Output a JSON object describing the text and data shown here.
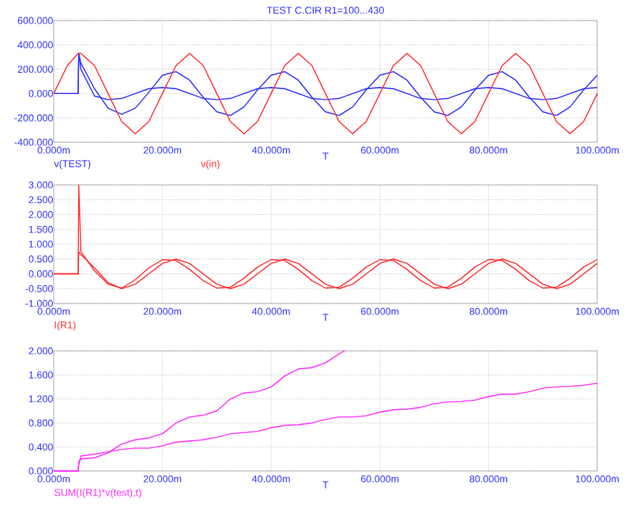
{
  "chart_data": [
    {
      "type": "line",
      "title": "TEST C.CIR R1=100...430",
      "xlabel": "T",
      "grid": true,
      "xlim": [
        0,
        100
      ],
      "ylim": [
        -400,
        600
      ],
      "xticks": [
        {
          "value": 0,
          "label": "0.000m"
        },
        {
          "value": 20,
          "label": "20.000m"
        },
        {
          "value": 40,
          "label": "40.000m"
        },
        {
          "value": 60,
          "label": "60.000m"
        },
        {
          "value": 80,
          "label": "80.000m"
        },
        {
          "value": 100,
          "label": "100.000m"
        }
      ],
      "yticks": [
        {
          "value": -400,
          "label": "-400.000"
        },
        {
          "value": -200,
          "label": "-200.000"
        },
        {
          "value": 0,
          "label": "0.000"
        },
        {
          "value": 200,
          "label": "200.000"
        },
        {
          "value": 400,
          "label": "400.000"
        },
        {
          "value": 600,
          "label": "600.000"
        }
      ],
      "series": [
        {
          "name": "v(TEST)",
          "color": "#3333ff",
          "x": [
            0,
            2.5,
            4.5,
            4.6,
            5,
            7.5,
            10,
            12.5,
            15,
            17.5,
            20,
            22.5,
            25,
            27.5,
            30,
            32.5,
            35,
            37.5,
            40,
            42.5,
            45,
            47.5,
            50,
            52.5,
            55,
            57.5,
            60,
            62.5,
            65,
            67.5,
            70,
            72.5,
            75,
            77.5,
            80,
            82.5,
            85,
            87.5,
            90,
            92.5,
            95,
            97.5,
            100
          ],
          "values": [
            0,
            0,
            0,
            330,
            250,
            40,
            -120,
            -170,
            -120,
            10,
            150,
            180,
            110,
            -30,
            -150,
            -180,
            -110,
            30,
            150,
            180,
            110,
            -30,
            -150,
            -180,
            -110,
            30,
            150,
            180,
            110,
            -30,
            -150,
            -180,
            -110,
            30,
            150,
            180,
            110,
            -30,
            -150,
            -180,
            -110,
            30,
            150
          ]
        },
        {
          "color": "#3333ff",
          "x": [
            0,
            2.5,
            4.5,
            4.6,
            5,
            7.5,
            10,
            12.5,
            15,
            17.5,
            20,
            22.5,
            25,
            27.5,
            30,
            32.5,
            35,
            37.5,
            40,
            42.5,
            45,
            47.5,
            50,
            52.5,
            55,
            57.5,
            60,
            62.5,
            65,
            67.5,
            70,
            72.5,
            75,
            77.5,
            80,
            82.5,
            85,
            87.5,
            90,
            92.5,
            95,
            97.5,
            100
          ],
          "values": [
            0,
            0,
            0,
            330,
            200,
            -20,
            -50,
            -40,
            0,
            40,
            50,
            40,
            0,
            -40,
            -50,
            -40,
            0,
            40,
            50,
            40,
            0,
            -40,
            -50,
            -40,
            0,
            40,
            50,
            40,
            0,
            -40,
            -50,
            -40,
            0,
            40,
            50,
            40,
            0,
            -40,
            -50,
            -40,
            0,
            40,
            50
          ]
        },
        {
          "name": "v(in)",
          "color": "#ff3333",
          "x": [
            0,
            2.5,
            4.5,
            4.6,
            5,
            7.5,
            10,
            12.5,
            15,
            17.5,
            20,
            22.5,
            25,
            27.5,
            30,
            32.5,
            35,
            37.5,
            40,
            42.5,
            45,
            47.5,
            50,
            52.5,
            55,
            57.5,
            60,
            62.5,
            65,
            67.5,
            70,
            72.5,
            75,
            77.5,
            80,
            82.5,
            85,
            87.5,
            90,
            92.5,
            95,
            97.5,
            100
          ],
          "values": [
            0,
            230,
            330,
            330,
            330,
            230,
            0,
            -230,
            -330,
            -230,
            0,
            230,
            330,
            230,
            0,
            -230,
            -330,
            -230,
            0,
            230,
            330,
            230,
            0,
            -230,
            -330,
            -230,
            0,
            230,
            330,
            230,
            0,
            -230,
            -330,
            -230,
            0,
            230,
            330,
            230,
            0,
            -230,
            -330,
            -230,
            0
          ]
        }
      ]
    },
    {
      "type": "line",
      "xlabel": "T",
      "grid": true,
      "xlim": [
        0,
        100
      ],
      "ylim": [
        -1,
        3
      ],
      "xticks": [
        {
          "value": 0,
          "label": "0.000m"
        },
        {
          "value": 20,
          "label": "20.000m"
        },
        {
          "value": 40,
          "label": "40.000m"
        },
        {
          "value": 60,
          "label": "60.000m"
        },
        {
          "value": 80,
          "label": "80.000m"
        },
        {
          "value": 100,
          "label": "100.000m"
        }
      ],
      "yticks": [
        {
          "value": -1,
          "label": "-1.000"
        },
        {
          "value": -0.5,
          "label": "-0.500"
        },
        {
          "value": 0,
          "label": "0.000"
        },
        {
          "value": 0.5,
          "label": "0.500"
        },
        {
          "value": 1,
          "label": "1.000"
        },
        {
          "value": 1.5,
          "label": "1.500"
        },
        {
          "value": 2,
          "label": "2.000"
        },
        {
          "value": 2.5,
          "label": "2.500"
        },
        {
          "value": 3,
          "label": "3.000"
        }
      ],
      "series": [
        {
          "name": "I(R1)",
          "color": "#ff3333",
          "x": [
            0,
            2.5,
            4.5,
            4.6,
            5,
            7.5,
            10,
            12.5,
            15,
            17.5,
            20,
            22.5,
            25,
            27.5,
            30,
            32.5,
            35,
            37.5,
            40,
            42.5,
            45,
            47.5,
            50,
            52.5,
            55,
            57.5,
            60,
            62.5,
            65,
            67.5,
            70,
            72.5,
            75,
            77.5,
            80,
            82.5,
            85,
            87.5,
            90,
            92.5,
            95,
            97.5,
            100
          ],
          "values": [
            0,
            0,
            0,
            3.0,
            0.75,
            0.1,
            -0.35,
            -0.48,
            -0.2,
            0.2,
            0.48,
            0.45,
            0.15,
            -0.23,
            -0.48,
            -0.45,
            -0.15,
            0.23,
            0.48,
            0.45,
            0.15,
            -0.23,
            -0.48,
            -0.45,
            -0.15,
            0.23,
            0.48,
            0.45,
            0.15,
            -0.23,
            -0.48,
            -0.45,
            -0.15,
            0.23,
            0.48,
            0.45,
            0.15,
            -0.23,
            -0.48,
            -0.45,
            -0.15,
            0.23,
            0.48
          ]
        },
        {
          "color": "#ff3333",
          "x": [
            0,
            2.5,
            4.5,
            4.6,
            5,
            7.5,
            10,
            12.5,
            15,
            17.5,
            20,
            22.5,
            25,
            27.5,
            30,
            32.5,
            35,
            37.5,
            40,
            42.5,
            45,
            47.5,
            50,
            52.5,
            55,
            57.5,
            60,
            62.5,
            65,
            67.5,
            70,
            72.5,
            75,
            77.5,
            80,
            82.5,
            85,
            87.5,
            90,
            92.5,
            95,
            97.5,
            100
          ],
          "values": [
            0,
            0,
            0,
            0.75,
            0.65,
            0.2,
            -0.3,
            -0.5,
            -0.35,
            0,
            0.35,
            0.5,
            0.35,
            0,
            -0.35,
            -0.5,
            -0.35,
            0,
            0.35,
            0.5,
            0.35,
            0,
            -0.35,
            -0.5,
            -0.35,
            0,
            0.35,
            0.5,
            0.35,
            0,
            -0.35,
            -0.5,
            -0.35,
            0,
            0.35,
            0.5,
            0.35,
            0,
            -0.35,
            -0.5,
            -0.35,
            0,
            0.35
          ]
        }
      ]
    },
    {
      "type": "line",
      "xlabel": "T",
      "grid": true,
      "xlim": [
        0,
        100
      ],
      "ylim": [
        0,
        2
      ],
      "xticks": [
        {
          "value": 0,
          "label": "0.000m"
        },
        {
          "value": 20,
          "label": "20.000m"
        },
        {
          "value": 40,
          "label": "40.000m"
        },
        {
          "value": 60,
          "label": "60.000m"
        },
        {
          "value": 80,
          "label": "80.000m"
        },
        {
          "value": 100,
          "label": "100.000m"
        }
      ],
      "yticks": [
        {
          "value": 0,
          "label": "0.000"
        },
        {
          "value": 0.4,
          "label": "0.400"
        },
        {
          "value": 0.8,
          "label": "0.800"
        },
        {
          "value": 1.2,
          "label": "1.200"
        },
        {
          "value": 1.6,
          "label": "1.600"
        },
        {
          "value": 2,
          "label": "2.000"
        }
      ],
      "series": [
        {
          "name": "SUM(I(R1)*v(test),t)",
          "color": "#ff33ff",
          "x": [
            0,
            2.5,
            4.5,
            4.6,
            5,
            7.5,
            10,
            12.5,
            15,
            17.5,
            20,
            22.5,
            25,
            27.5,
            30,
            32.5,
            35,
            37.5,
            40,
            42.5,
            45,
            47.5,
            50,
            52.5,
            53.5
          ],
          "values": [
            0,
            0,
            0,
            0.15,
            0.2,
            0.22,
            0.3,
            0.45,
            0.52,
            0.55,
            0.62,
            0.8,
            0.9,
            0.93,
            1.0,
            1.2,
            1.3,
            1.32,
            1.4,
            1.58,
            1.7,
            1.72,
            1.8,
            1.95,
            2.0
          ]
        },
        {
          "color": "#ff33ff",
          "x": [
            0,
            2.5,
            4.5,
            4.6,
            5,
            7.5,
            10,
            12.5,
            15,
            17.5,
            20,
            22.5,
            25,
            27.5,
            30,
            32.5,
            35,
            37.5,
            40,
            42.5,
            45,
            47.5,
            50,
            52.5,
            55,
            57.5,
            60,
            62.5,
            65,
            67.5,
            70,
            72.5,
            75,
            77.5,
            80,
            82.5,
            85,
            87.5,
            90,
            92.5,
            95,
            97.5,
            100
          ],
          "values": [
            0,
            0,
            0,
            0.1,
            0.25,
            0.28,
            0.32,
            0.36,
            0.38,
            0.38,
            0.42,
            0.48,
            0.5,
            0.52,
            0.56,
            0.62,
            0.64,
            0.66,
            0.72,
            0.76,
            0.77,
            0.8,
            0.86,
            0.9,
            0.9,
            0.92,
            0.98,
            1.02,
            1.03,
            1.06,
            1.12,
            1.15,
            1.16,
            1.18,
            1.24,
            1.28,
            1.28,
            1.32,
            1.38,
            1.4,
            1.41,
            1.43,
            1.46
          ]
        }
      ]
    }
  ]
}
